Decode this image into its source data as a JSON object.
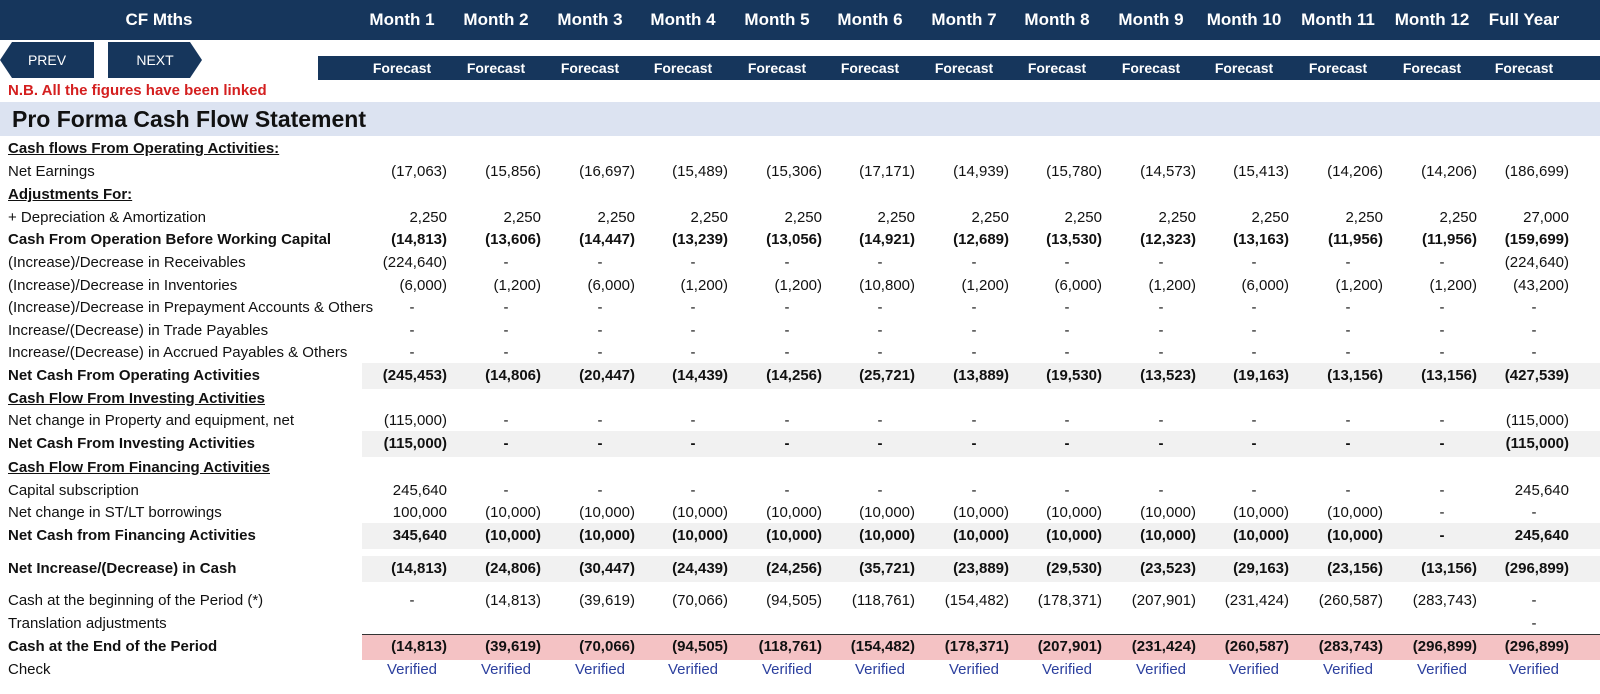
{
  "header": {
    "corner_title": "CF Mths",
    "months": [
      "Month 1",
      "Month 2",
      "Month 3",
      "Month 4",
      "Month 5",
      "Month 6",
      "Month 7",
      "Month 8",
      "Month 9",
      "Month 10",
      "Month 11",
      "Month 12",
      "Full Year"
    ],
    "forecast_label": "Forecast"
  },
  "nav": {
    "prev": "PREV",
    "next": "NEXT"
  },
  "note": "N.B. All the figures have been linked",
  "title": "Pro Forma Cash Flow Statement",
  "colors": {
    "header_bg": "#16365c",
    "title_band": "#dce3f1",
    "note": "#d41f1f",
    "end_band": "#f4c2c4",
    "verified": "#2b3f9e"
  },
  "rows": [
    {
      "label": "Cash flows From Operating Activities:",
      "type": "section",
      "values": []
    },
    {
      "label": "Net Earnings",
      "type": "normal",
      "values": [
        "(17,063)",
        "(15,856)",
        "(16,697)",
        "(15,489)",
        "(15,306)",
        "(17,171)",
        "(14,939)",
        "(15,780)",
        "(14,573)",
        "(15,413)",
        "(14,206)",
        "(14,206)",
        "(186,699)"
      ]
    },
    {
      "label": "Adjustments For:",
      "type": "section",
      "values": []
    },
    {
      "label": " + Depreciation & Amortization",
      "type": "normal",
      "values": [
        "2,250",
        "2,250",
        "2,250",
        "2,250",
        "2,250",
        "2,250",
        "2,250",
        "2,250",
        "2,250",
        "2,250",
        "2,250",
        "2,250",
        "27,000"
      ]
    },
    {
      "label": "Cash From Operation Before Working Capital",
      "type": "bold",
      "values": [
        "(14,813)",
        "(13,606)",
        "(14,447)",
        "(13,239)",
        "(13,056)",
        "(14,921)",
        "(12,689)",
        "(13,530)",
        "(12,323)",
        "(13,163)",
        "(11,956)",
        "(11,956)",
        "(159,699)"
      ]
    },
    {
      "label": "(Increase)/Decrease in Receivables",
      "type": "normal",
      "values": [
        "(224,640)",
        "-",
        "-",
        "-",
        "-",
        "-",
        "-",
        "-",
        "-",
        "-",
        "-",
        "-",
        "(224,640)"
      ]
    },
    {
      "label": "(Increase)/Decrease in Inventories",
      "type": "normal",
      "values": [
        "(6,000)",
        "(1,200)",
        "(6,000)",
        "(1,200)",
        "(1,200)",
        "(10,800)",
        "(1,200)",
        "(6,000)",
        "(1,200)",
        "(6,000)",
        "(1,200)",
        "(1,200)",
        "(43,200)"
      ]
    },
    {
      "label": "(Increase)/Decrease in Prepayment Accounts & Others",
      "type": "normal",
      "values": [
        "-",
        "-",
        "-",
        "-",
        "-",
        "-",
        "-",
        "-",
        "-",
        "-",
        "-",
        "-",
        "-"
      ]
    },
    {
      "label": "Increase/(Decrease) in Trade Payables",
      "type": "normal",
      "values": [
        "-",
        "-",
        "-",
        "-",
        "-",
        "-",
        "-",
        "-",
        "-",
        "-",
        "-",
        "-",
        "-"
      ]
    },
    {
      "label": "Increase/(Decrease) in Accrued Payables & Others",
      "type": "normal",
      "values": [
        "-",
        "-",
        "-",
        "-",
        "-",
        "-",
        "-",
        "-",
        "-",
        "-",
        "-",
        "-",
        "-"
      ]
    },
    {
      "label": "Net Cash From Operating Activities",
      "type": "total",
      "values": [
        "(245,453)",
        "(14,806)",
        "(20,447)",
        "(14,439)",
        "(14,256)",
        "(25,721)",
        "(13,889)",
        "(19,530)",
        "(13,523)",
        "(19,163)",
        "(13,156)",
        "(13,156)",
        "(427,539)"
      ]
    },
    {
      "label": "Cash Flow From Investing Activities",
      "type": "section",
      "values": []
    },
    {
      "label": "Net change in Property and equipment, net",
      "type": "normal",
      "values": [
        "(115,000)",
        "-",
        "-",
        "-",
        "-",
        "-",
        "-",
        "-",
        "-",
        "-",
        "-",
        "-",
        "(115,000)"
      ]
    },
    {
      "label": "Net Cash From Investing Activities",
      "type": "total",
      "values": [
        "(115,000)",
        "-",
        "-",
        "-",
        "-",
        "-",
        "-",
        "-",
        "-",
        "-",
        "-",
        "-",
        "(115,000)"
      ]
    },
    {
      "label": "Cash Flow From Financing Activities",
      "type": "section",
      "values": []
    },
    {
      "label": "Capital subscription",
      "type": "normal",
      "values": [
        "245,640",
        "-",
        "-",
        "-",
        "-",
        "-",
        "-",
        "-",
        "-",
        "-",
        "-",
        "-",
        "245,640"
      ]
    },
    {
      "label": "Net change in ST/LT borrowings",
      "type": "normal",
      "values": [
        "100,000",
        "(10,000)",
        "(10,000)",
        "(10,000)",
        "(10,000)",
        "(10,000)",
        "(10,000)",
        "(10,000)",
        "(10,000)",
        "(10,000)",
        "(10,000)",
        "-",
        "-"
      ]
    },
    {
      "label": "Net Cash from Financing Activities",
      "type": "total",
      "values": [
        "345,640",
        "(10,000)",
        "(10,000)",
        "(10,000)",
        "(10,000)",
        "(10,000)",
        "(10,000)",
        "(10,000)",
        "(10,000)",
        "(10,000)",
        "(10,000)",
        "-",
        "245,640"
      ]
    },
    {
      "label": "Net Increase/(Decrease) in Cash",
      "type": "total",
      "values": [
        "(14,813)",
        "(24,806)",
        "(30,447)",
        "(24,439)",
        "(24,256)",
        "(35,721)",
        "(23,889)",
        "(29,530)",
        "(23,523)",
        "(29,163)",
        "(23,156)",
        "(13,156)",
        "(296,899)"
      ]
    },
    {
      "label": "Cash at the beginning of the Period (*)",
      "type": "normal",
      "values": [
        "-",
        "(14,813)",
        "(39,619)",
        "(70,066)",
        "(94,505)",
        "(118,761)",
        "(154,482)",
        "(178,371)",
        "(207,901)",
        "(231,424)",
        "(260,587)",
        "(283,743)",
        "-"
      ]
    },
    {
      "label": "Translation adjustments",
      "type": "normal",
      "values": [
        "",
        "",
        "",
        "",
        "",
        "",
        "",
        "",
        "",
        "",
        "",
        "",
        "-"
      ]
    },
    {
      "label": "Cash at the End of the Period",
      "type": "end",
      "values": [
        "(14,813)",
        "(39,619)",
        "(70,066)",
        "(94,505)",
        "(118,761)",
        "(154,482)",
        "(178,371)",
        "(207,901)",
        "(231,424)",
        "(260,587)",
        "(283,743)",
        "(296,899)",
        "(296,899)"
      ]
    },
    {
      "label": "Check",
      "type": "check",
      "values": [
        "Verified",
        "Verified",
        "Verified",
        "Verified",
        "Verified",
        "Verified",
        "Verified",
        "Verified",
        "Verified",
        "Verified",
        "Verified",
        "Verified",
        "Verified"
      ]
    }
  ]
}
